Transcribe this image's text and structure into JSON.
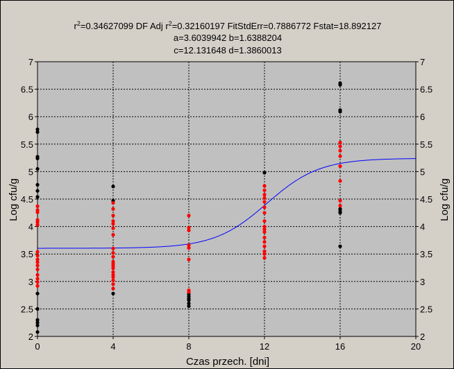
{
  "chart_data": {
    "type": "scatter",
    "header": {
      "stats_prefix": "r",
      "stats_rest": "=0.34627099  DF Adj r",
      "stats_tail": "=0.32160197  FitStdErr=0.7886772  Fstat=18.892127",
      "params_line1": "a=3.6039942 b=1.6388204",
      "params_line2": "c=12.131648 d=1.3860013"
    },
    "xlabel": "Czas przech. [dni]",
    "ylabel": "Log cfu/g",
    "ylabel_right": "Log cfu/g",
    "xlim": [
      0,
      20
    ],
    "ylim": [
      2,
      7
    ],
    "x_ticks": [
      0,
      4,
      8,
      12,
      16,
      20
    ],
    "y_ticks": [
      2,
      2.5,
      3,
      3.5,
      4,
      4.5,
      5,
      5.5,
      6,
      6.5,
      7
    ],
    "grid": true,
    "plot_background": "#c0c0c0",
    "fit_model": {
      "a": 3.6039942,
      "b": 1.6388204,
      "c": 12.131648,
      "d": 1.3860013,
      "color": "#0000ff"
    },
    "series": [
      {
        "color": "#000000",
        "points": [
          [
            0,
            5.77
          ],
          [
            0,
            5.72
          ],
          [
            0,
            5.27
          ],
          [
            0,
            5.24
          ],
          [
            0,
            5.05
          ],
          [
            0,
            4.76
          ],
          [
            0,
            4.65
          ],
          [
            0,
            4.54
          ],
          [
            0,
            2.78
          ],
          [
            0,
            2.5
          ],
          [
            0,
            2.3
          ],
          [
            0,
            2.25
          ],
          [
            0,
            2.2
          ],
          [
            0,
            2.08
          ],
          [
            4,
            4.73
          ],
          [
            4,
            4.47
          ],
          [
            4,
            2.78
          ],
          [
            8,
            2.77
          ],
          [
            8,
            2.73
          ],
          [
            8,
            2.69
          ],
          [
            8,
            2.66
          ],
          [
            8,
            2.6
          ],
          [
            8,
            2.55
          ],
          [
            12,
            4.98
          ],
          [
            16,
            6.61
          ],
          [
            16,
            6.58
          ],
          [
            16,
            6.12
          ],
          [
            16,
            6.09
          ],
          [
            16,
            4.32
          ],
          [
            16,
            4.28
          ],
          [
            16,
            4.25
          ],
          [
            16,
            3.64
          ]
        ]
      },
      {
        "color": "#ff0000",
        "points": [
          [
            0,
            4.37
          ],
          [
            0,
            4.3
          ],
          [
            0,
            4.26
          ],
          [
            0,
            4.12
          ],
          [
            0,
            4.08
          ],
          [
            0,
            4.03
          ],
          [
            0,
            3.54
          ],
          [
            0,
            3.47
          ],
          [
            0,
            3.4
          ],
          [
            0,
            3.35
          ],
          [
            0,
            3.29
          ],
          [
            0,
            3.22
          ],
          [
            0,
            3.12
          ],
          [
            0,
            3.05
          ],
          [
            0,
            2.99
          ],
          [
            0,
            2.92
          ],
          [
            4,
            4.43
          ],
          [
            4,
            4.32
          ],
          [
            4,
            4.2
          ],
          [
            4,
            4.1
          ],
          [
            4,
            4.05
          ],
          [
            4,
            3.97
          ],
          [
            4,
            3.85
          ],
          [
            4,
            3.6
          ],
          [
            4,
            3.52
          ],
          [
            4,
            3.45
          ],
          [
            4,
            3.36
          ],
          [
            4,
            3.32
          ],
          [
            4,
            3.28
          ],
          [
            4,
            3.24
          ],
          [
            4,
            3.17
          ],
          [
            4,
            3.12
          ],
          [
            4,
            3.08
          ],
          [
            4,
            3.02
          ],
          [
            4,
            2.95
          ],
          [
            4,
            2.87
          ],
          [
            8,
            4.2
          ],
          [
            8,
            3.98
          ],
          [
            8,
            3.93
          ],
          [
            8,
            3.66
          ],
          [
            8,
            3.61
          ],
          [
            8,
            3.4
          ],
          [
            8,
            2.84
          ],
          [
            8,
            2.81
          ],
          [
            12,
            4.74
          ],
          [
            12,
            4.66
          ],
          [
            12,
            4.58
          ],
          [
            12,
            4.52
          ],
          [
            12,
            4.45
          ],
          [
            12,
            4.35
          ],
          [
            12,
            4.25
          ],
          [
            12,
            4.1
          ],
          [
            12,
            4.0
          ],
          [
            12,
            3.95
          ],
          [
            12,
            3.9
          ],
          [
            12,
            3.8
          ],
          [
            12,
            3.72
          ],
          [
            12,
            3.64
          ],
          [
            12,
            3.55
          ],
          [
            12,
            3.5
          ],
          [
            12,
            3.43
          ],
          [
            16,
            5.53
          ],
          [
            16,
            5.46
          ],
          [
            16,
            5.38
          ],
          [
            16,
            5.28
          ],
          [
            16,
            5.1
          ],
          [
            16,
            4.83
          ],
          [
            16,
            4.47
          ],
          [
            16,
            4.38
          ]
        ]
      }
    ]
  }
}
